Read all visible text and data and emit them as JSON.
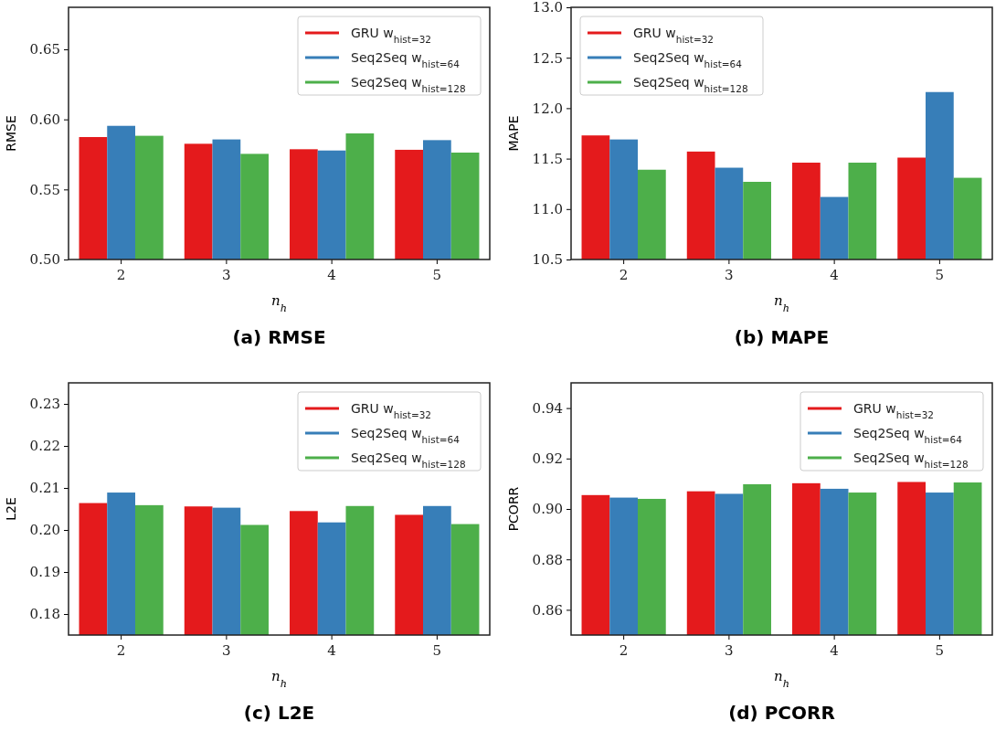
{
  "chart_data": [
    {
      "type": "bar",
      "title": "(a) RMSE",
      "xlabel": "n$_{h}$",
      "ylabel": "RMSE",
      "categories": [
        "2",
        "3",
        "4",
        "5"
      ],
      "series": [
        {
          "name": "GRU w$_{hist=32}$",
          "color": "#e41a1c",
          "values": [
            0.5874,
            0.5826,
            0.5787,
            0.5783
          ]
        },
        {
          "name": "Seq2Seq w$_{hist=64}$",
          "color": "#377eb8",
          "values": [
            0.5954,
            0.5857,
            0.5778,
            0.5852
          ]
        },
        {
          "name": "Seq2Seq w$_{hist=128}$",
          "color": "#4daf4a",
          "values": [
            0.5883,
            0.5754,
            0.59,
            0.5763
          ]
        }
      ],
      "ylim": [
        0.5,
        0.68
      ],
      "yticks": [
        {
          "value": 0.5,
          "label": "0.50"
        },
        {
          "value": 0.55,
          "label": "0.55"
        },
        {
          "value": 0.6,
          "label": "0.60"
        },
        {
          "value": 0.65,
          "label": "0.65"
        }
      ],
      "legend": "top right"
    },
    {
      "type": "bar",
      "title": "(b) MAPE",
      "xlabel": "n$_{h}$",
      "ylabel": "MAPE",
      "categories": [
        "2",
        "3",
        "4",
        "5"
      ],
      "series": [
        {
          "name": "GRU w$_{hist=32}$",
          "color": "#e41a1c",
          "values": [
            11.73,
            11.57,
            11.46,
            11.51
          ]
        },
        {
          "name": "Seq2Seq w$_{hist=64}$",
          "color": "#377eb8",
          "values": [
            11.69,
            11.41,
            11.12,
            12.16
          ]
        },
        {
          "name": "Seq2Seq w$_{hist=128}$",
          "color": "#4daf4a",
          "values": [
            11.39,
            11.27,
            11.46,
            11.31
          ]
        }
      ],
      "ylim": [
        10.5,
        13.0
      ],
      "yticks": [
        {
          "value": 10.5,
          "label": "10.5"
        },
        {
          "value": 11,
          "label": "11.0"
        },
        {
          "value": 11.5,
          "label": "11.5"
        },
        {
          "value": 12,
          "label": "12.0"
        },
        {
          "value": 12.5,
          "label": "12.5"
        },
        {
          "value": 13,
          "label": "13.0"
        }
      ],
      "legend": "top left"
    },
    {
      "type": "bar",
      "title": "(c) L2E",
      "xlabel": "n$_{h}$",
      "ylabel": "L2E",
      "categories": [
        "2",
        "3",
        "4",
        "5"
      ],
      "series": [
        {
          "name": "GRU w$_{hist=32}$",
          "color": "#e41a1c",
          "values": [
            0.2064,
            0.2056,
            0.2045,
            0.2036
          ]
        },
        {
          "name": "Seq2Seq w$_{hist=64}$",
          "color": "#377eb8",
          "values": [
            0.2089,
            0.2053,
            0.2018,
            0.2057
          ]
        },
        {
          "name": "Seq2Seq w$_{hist=128}$",
          "color": "#4daf4a",
          "values": [
            0.2059,
            0.2012,
            0.2057,
            0.2014
          ]
        }
      ],
      "ylim": [
        0.175,
        0.235
      ],
      "yticks": [
        {
          "value": 0.18,
          "label": "0.18"
        },
        {
          "value": 0.19,
          "label": "0.19"
        },
        {
          "value": 0.2,
          "label": "0.20"
        },
        {
          "value": 0.21,
          "label": "0.21"
        },
        {
          "value": 0.22,
          "label": "0.22"
        },
        {
          "value": 0.23,
          "label": "0.23"
        }
      ],
      "legend": "top right"
    },
    {
      "type": "bar",
      "title": "(d) PCORR",
      "xlabel": "n$_{h}$",
      "ylabel": "PCORR",
      "categories": [
        "2",
        "3",
        "4",
        "5"
      ],
      "series": [
        {
          "name": "GRU w$_{hist=32}$",
          "color": "#e41a1c",
          "values": [
            0.9055,
            0.907,
            0.9102,
            0.9107
          ]
        },
        {
          "name": "Seq2Seq w$_{hist=64}$",
          "color": "#377eb8",
          "values": [
            0.9045,
            0.906,
            0.908,
            0.9065
          ]
        },
        {
          "name": "Seq2Seq w$_{hist=128}$",
          "color": "#4daf4a",
          "values": [
            0.904,
            0.9098,
            0.9065,
            0.9105
          ]
        }
      ],
      "ylim": [
        0.85,
        0.95
      ],
      "yticks": [
        {
          "value": 0.86,
          "label": "0.86"
        },
        {
          "value": 0.88,
          "label": "0.88"
        },
        {
          "value": 0.9,
          "label": "0.90"
        },
        {
          "value": 0.92,
          "label": "0.92"
        },
        {
          "value": 0.94,
          "label": "0.94"
        }
      ],
      "legend": "top right"
    }
  ]
}
